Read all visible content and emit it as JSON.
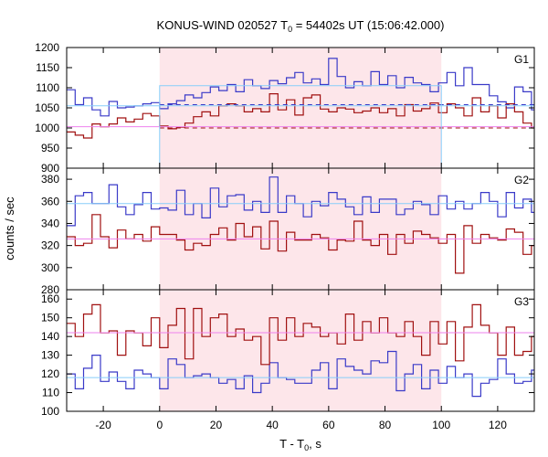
{
  "chart_data": {
    "type": "line",
    "title": {
      "prefix": "KONUS-WIND 020527 T",
      "sub": "0",
      "suffix": " = 54402s UT (15:06:42.000)"
    },
    "xlabel": {
      "prefix": "T - T",
      "sub": "0",
      "suffix": ", s"
    },
    "ylabel": "counts / sec",
    "xlim": [
      -33,
      133
    ],
    "xticks": [
      -20,
      0,
      20,
      40,
      60,
      80,
      100,
      120
    ],
    "highlight": {
      "from": 0,
      "to": 100,
      "color": "#fde6ea"
    },
    "colors": {
      "blue": "#3a3ac8",
      "red": "#a01010",
      "light_blue": "#87cefa",
      "pink": "#ee82ee"
    },
    "bin_start": -33,
    "bin_width": 3,
    "panels": [
      {
        "label": "G1",
        "ylim": [
          900,
          1200
        ],
        "yticks": [
          900,
          950,
          1000,
          1050,
          1100,
          1150,
          1200
        ],
        "series": [
          {
            "color": "blue",
            "values": [
              1095,
              1058,
              1075,
              1045,
              1030,
              1066,
              1050,
              1052,
              1055,
              1060,
              1063,
              1048,
              1060,
              1068,
              1082,
              1075,
              1088,
              1102,
              1093,
              1108,
              1090,
              1120,
              1105,
              1098,
              1118,
              1110,
              1125,
              1138,
              1112,
              1122,
              1108,
              1173,
              1128,
              1100,
              1115,
              1105,
              1140,
              1108,
              1130,
              1100,
              1126,
              1112,
              1108,
              1090,
              1112,
              1138,
              1105,
              1150,
              1108,
              1108,
              1080,
              1065,
              1050,
              1102,
              1090,
              1045,
              1075,
              1062,
              1050,
              1058,
              1055,
              1055,
              1060
            ]
          },
          {
            "color": "red",
            "values": [
              990,
              982,
              975,
              1010,
              1003,
              1010,
              1025,
              1015,
              1022,
              1036,
              1030,
              1005,
              998,
              1002,
              1012,
              1028,
              1040,
              1030,
              1055,
              1060,
              1055,
              1040,
              1048,
              1040,
              1085,
              1045,
              1070,
              1032,
              1075,
              1082,
              1047,
              1040,
              1050,
              1047,
              1038,
              1042,
              1050,
              1038,
              1048,
              1030,
              1058,
              1042,
              1048,
              1062,
              1038,
              1060,
              1050,
              1030,
              1075,
              1040,
              1055,
              1025,
              1060,
              1040,
              1012,
              1000,
              1005,
              1018,
              1005,
              1012,
              1003,
              1000,
              1005
            ]
          },
          {
            "color": "light_blue",
            "hline": 1055,
            "from": -33,
            "to": 133
          },
          {
            "color": "pink",
            "hline": 1003,
            "from": -33,
            "to": 133
          },
          {
            "color": "blue",
            "hline": 1058,
            "from": 0,
            "to": 133,
            "dashed": true
          },
          {
            "color": "red",
            "hline": 1000,
            "from": 0,
            "to": 133,
            "dashed": true
          },
          {
            "color": "light_blue",
            "box": {
              "x0": 0,
              "x1": 100,
              "y": 1105
            }
          }
        ]
      },
      {
        "label": "G2",
        "ylim": [
          280,
          390
        ],
        "yticks": [
          280,
          300,
          320,
          340,
          360,
          380
        ],
        "series": [
          {
            "color": "blue",
            "values": [
              338,
              365,
              368,
              358,
              358,
              375,
              355,
              348,
              357,
              368,
              353,
              354,
              352,
              370,
              348,
              358,
              345,
              372,
              355,
              365,
              366,
              352,
              360,
              350,
              382,
              350,
              365,
              358,
              346,
              360,
              356,
              368,
              362,
              355,
              348,
              364,
              350,
              362,
              362,
              348,
              353,
              360,
              357,
              348,
              365,
              353,
              360,
              353,
              358,
              368,
              360,
              346,
              368,
              354,
              362,
              350,
              354,
              355,
              350,
              360,
              360,
              330,
              362
            ]
          },
          {
            "color": "red",
            "values": [
              328,
              320,
              322,
              348,
              328,
              318,
              334,
              326,
              330,
              324,
              337,
              330,
              330,
              325,
              316,
              322,
              320,
              330,
              336,
              325,
              340,
              328,
              337,
              317,
              342,
              315,
              332,
              325,
              325,
              330,
              327,
              316,
              325,
              324,
              342,
              325,
              320,
              330,
              312,
              330,
              322,
              333,
              330,
              327,
              322,
              330,
              295,
              338,
              322,
              330,
              327,
              325,
              335,
              332,
              312,
              320,
              335,
              325,
              327,
              340,
              305,
              325,
              325
            ]
          },
          {
            "color": "light_blue",
            "hline": 358,
            "from": -33,
            "to": 133
          },
          {
            "color": "pink",
            "hline": 326,
            "from": -33,
            "to": 133
          }
        ]
      },
      {
        "label": "G3",
        "ylim": [
          100,
          165
        ],
        "yticks": [
          100,
          110,
          120,
          130,
          140,
          150,
          160
        ],
        "series": [
          {
            "color": "blue",
            "values": [
              120,
              112,
              123,
              130,
              116,
              121,
              116,
              112,
              122,
              120,
              118,
              112,
              128,
              125,
              118,
              119,
              120,
              118,
              115,
              117,
              112,
              119,
              110,
              115,
              126,
              118,
              117,
              115,
              115,
              122,
              126,
              112,
              128,
              124,
              122,
              120,
              127,
              126,
              132,
              111,
              120,
              125,
              112,
              122,
              115,
              124,
              118,
              120,
              108,
              115,
              117,
              128,
              120,
              115,
              116,
              122,
              114,
              118,
              114,
              125,
              120,
              114,
              110
            ]
          },
          {
            "color": "red",
            "values": [
              147,
              140,
              152,
              157,
              142,
              143,
              130,
              143,
              142,
              135,
              150,
              134,
              146,
              155,
              128,
              155,
              140,
              150,
              152,
              140,
              144,
              138,
              140,
              125,
              150,
              138,
              150,
              140,
              147,
              145,
              140,
              142,
              136,
              152,
              138,
              148,
              142,
              150,
              142,
              140,
              148,
              140,
              130,
              148,
              136,
              148,
              127,
              145,
              157,
              146,
              142,
              130,
              145,
              130,
              132,
              140,
              124,
              145,
              128,
              135,
              140,
              150,
              152
            ]
          },
          {
            "color": "light_blue",
            "hline": 118,
            "from": -33,
            "to": 133
          },
          {
            "color": "pink",
            "hline": 142,
            "from": -33,
            "to": 133
          }
        ]
      }
    ]
  }
}
